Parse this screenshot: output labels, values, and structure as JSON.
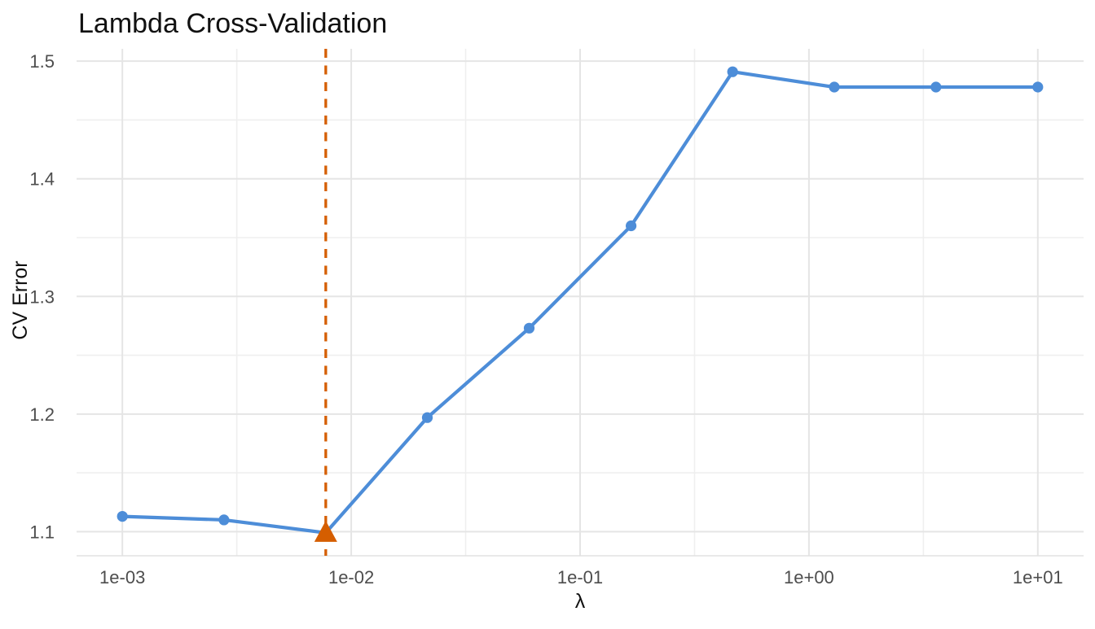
{
  "chart": {
    "title": "Lambda Cross-Validation",
    "x_axis_title": "λ",
    "y_axis_title": "CV Error"
  },
  "chart_data": {
    "type": "line",
    "title": "Lambda Cross-Validation",
    "xlabel": "λ",
    "ylabel": "CV Error",
    "x_scale": "log10",
    "grid": true,
    "legend": "none",
    "x": [
      0.001,
      0.00278,
      0.00774,
      0.0215,
      0.0599,
      0.167,
      0.464,
      1.29,
      3.59,
      10
    ],
    "y": [
      1.113,
      1.11,
      1.099,
      1.197,
      1.273,
      1.36,
      1.491,
      1.478,
      1.478,
      1.478
    ],
    "x_tick_values": [
      0.001,
      0.01,
      0.1,
      1,
      10
    ],
    "x_tick_labels": [
      "1e-03",
      "1e-02",
      "1e-01",
      "1e+00",
      "1e+01"
    ],
    "y_tick_values": [
      1.1,
      1.2,
      1.3,
      1.4,
      1.5
    ],
    "y_tick_labels": [
      "1.1",
      "1.2",
      "1.3",
      "1.4",
      "1.5"
    ],
    "x_range_log10": [
      -3.2,
      1.2
    ],
    "y_range": [
      1.0795,
      1.5105
    ],
    "best_lambda": 0.00774,
    "best_cv_error": 1.099,
    "annotations": {
      "vline_x": 0.00774,
      "vline_style": "dashed",
      "min_marker": "triangle"
    },
    "colors": {
      "line": "#4D8DD8",
      "point": "#4D8DD8",
      "highlight": "#D55E00",
      "grid_major": "#E5E5E5",
      "grid_minor": "#EFEFEF",
      "axis_line": "#E2E2E2",
      "tick_text": "#4d4d4d",
      "title_text": "#111111",
      "background": "#FFFFFF"
    }
  }
}
